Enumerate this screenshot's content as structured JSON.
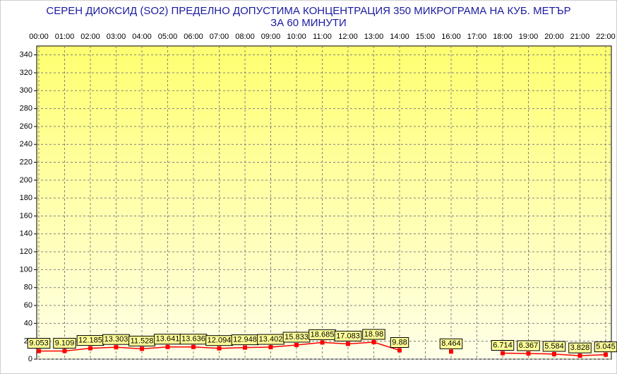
{
  "chart_data": {
    "type": "line",
    "title": "СЕРЕН ДИОКСИД  (SO2)  ПРЕДЕЛНО ДОПУСТИМА КОНЦЕНТРАЦИЯ 350 МИКРОГРАМА  НА КУБ. МЕТЪР",
    "subtitle": "ЗА 60 МИНУТИ",
    "categories": [
      "00:00",
      "01:00",
      "02:00",
      "03:00",
      "04:00",
      "05:00",
      "06:00",
      "07:00",
      "08:00",
      "09:00",
      "10:00",
      "11:00",
      "12:00",
      "13:00",
      "14:00",
      "15:00",
      "16:00",
      "17:00",
      "18:00",
      "19:00",
      "20:00",
      "21:00",
      "22:00"
    ],
    "series": [
      {
        "color": "#ff0000",
        "values": [
          9.053,
          9.109,
          12.185,
          13.303,
          11.528,
          13.641,
          13.636,
          12.094,
          12.948,
          13.402,
          15.833,
          18.685,
          17.083,
          18.98,
          9.88,
          null,
          8.464,
          null,
          6.714,
          6.367,
          5.584,
          3.828,
          5.045
        ]
      }
    ],
    "ylim": [
      0,
      350
    ],
    "yticks": [
      0,
      20,
      40,
      60,
      80,
      100,
      120,
      140,
      160,
      180,
      200,
      220,
      240,
      260,
      280,
      300,
      320,
      340
    ],
    "grid": true
  }
}
